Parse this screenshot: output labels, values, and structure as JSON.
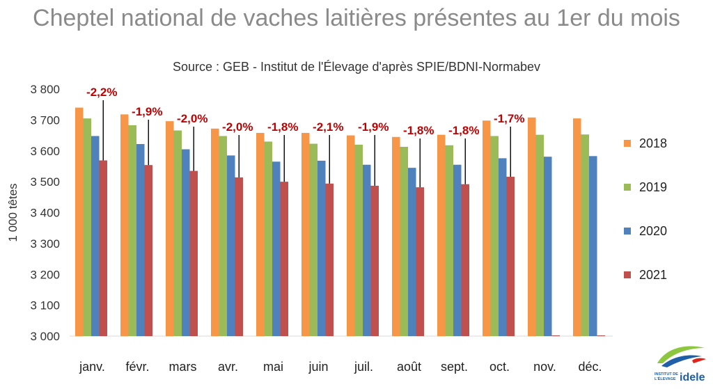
{
  "chart_data": {
    "type": "bar",
    "title": "Cheptel national de vaches laitières présentes au 1er du mois",
    "subtitle": "Source : GEB - Institut de l'Élevage d'après SPIE/BDNI-Normabev",
    "ylabel": "1 000  têtes",
    "ylim": [
      3000,
      3800
    ],
    "yticks": [
      "3 000",
      "3 100",
      "3 200",
      "3 300",
      "3 400",
      "3 500",
      "3 600",
      "3 700",
      "3 800"
    ],
    "ytick_values": [
      3000,
      3100,
      3200,
      3300,
      3400,
      3500,
      3600,
      3700,
      3800
    ],
    "categories": [
      "janv.",
      "févr.",
      "mars",
      "avr.",
      "mai",
      "juin",
      "juil.",
      "août",
      "sept.",
      "oct.",
      "nov.",
      "déc."
    ],
    "series": [
      {
        "name": "2018",
        "color": "#F79646",
        "values": [
          3740,
          3718,
          3696,
          3672,
          3658,
          3658,
          3650,
          3645,
          3652,
          3698,
          3708,
          3705
        ]
      },
      {
        "name": "2019",
        "color": "#9BBB59",
        "values": [
          3705,
          3683,
          3666,
          3648,
          3630,
          3623,
          3620,
          3613,
          3618,
          3648,
          3652,
          3653
        ]
      },
      {
        "name": "2020",
        "color": "#4F81BD",
        "values": [
          3648,
          3622,
          3605,
          3585,
          3565,
          3568,
          3555,
          3545,
          3555,
          3576,
          3581,
          3583
        ]
      },
      {
        "name": "2021",
        "color": "#C0504D",
        "values": [
          3569,
          3554,
          3535,
          3514,
          3500,
          3494,
          3487,
          3482,
          3492,
          3516,
          null,
          null
        ]
      }
    ],
    "annotations": [
      "-2,2%",
      "-1,9%",
      "-2,0%",
      "-2,0%",
      "-1,8%",
      "-2,1%",
      "-1,9%",
      "-1,8%",
      "-1,8%",
      "-1,7%"
    ],
    "annotation_color": "#C00000",
    "legend_position": "right",
    "grid": false
  },
  "logo": {
    "line1": "INSTITUT DE",
    "line2": "L'ÉLEVAGE",
    "brand": "idele"
  }
}
